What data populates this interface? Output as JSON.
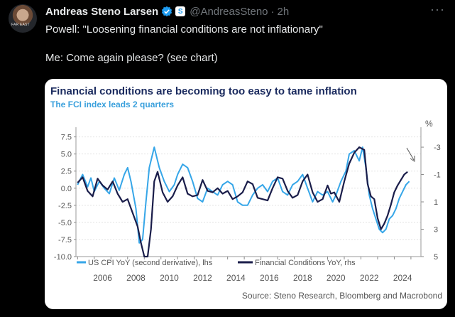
{
  "tweet": {
    "author_name": "Andreas Steno Larsen",
    "handle": "@AndreasSteno",
    "separator": "·",
    "time": "2h",
    "more_label": "···",
    "affiliate_badge": "S",
    "avatar_caption": "FAR EAST",
    "line1": "Powell: \"Loosening financial conditions are not inflationary\"",
    "line2": "Me: Come again please? (see chart)"
  },
  "colors": {
    "verified": "#1d9bf0",
    "cpi": "#36a6e8",
    "fci": "#1a1d4a",
    "title": "#1a2a5e",
    "subtitle": "#3aa0dc"
  },
  "chart_data": {
    "type": "line",
    "title": "Financial conditions are becoming too easy to tame inflation",
    "subtitle": "The FCI index leads 2 quarters",
    "source": "Source: Steno Research, Bloomberg and Macrobond",
    "right_axis_unit": "%",
    "left_axis": {
      "ticks": [
        7.5,
        5.0,
        2.5,
        0.0,
        -2.5,
        -5.0,
        -7.5,
        -10.0
      ],
      "range": [
        -10,
        8.5
      ]
    },
    "right_axis": {
      "inverted": true,
      "ticks": [
        -3,
        -1,
        1,
        3,
        5
      ],
      "range": [
        -4.25,
        5
      ]
    },
    "x_axis": {
      "ticks": [
        "2006",
        "2008",
        "2010",
        "2012",
        "2014",
        "2016",
        "2018",
        "2020",
        "2022",
        "2024"
      ],
      "range": [
        2004.9,
        2025.6
      ]
    },
    "legend": [
      "US CPI YoY (second derivative), lhs",
      "Financial Conditions YoY, rhs"
    ],
    "series": [
      {
        "name": "US CPI YoY (second derivative), lhs",
        "axis": "left",
        "x": [
          2005.0,
          2005.3,
          2005.6,
          2005.8,
          2006.0,
          2006.3,
          2006.6,
          2006.9,
          2007.2,
          2007.5,
          2007.8,
          2008.0,
          2008.2,
          2008.5,
          2008.7,
          2008.9,
          2009.1,
          2009.3,
          2009.6,
          2009.9,
          2010.2,
          2010.5,
          2010.8,
          2011.0,
          2011.3,
          2011.6,
          2011.9,
          2012.2,
          2012.5,
          2012.8,
          2013.1,
          2013.4,
          2013.7,
          2014.0,
          2014.3,
          2014.6,
          2014.9,
          2015.2,
          2015.5,
          2015.8,
          2016.1,
          2016.4,
          2016.7,
          2017.0,
          2017.3,
          2017.6,
          2017.9,
          2018.2,
          2018.5,
          2018.8,
          2019.1,
          2019.4,
          2019.7,
          2020.0,
          2020.3,
          2020.5,
          2020.8,
          2021.1,
          2021.3,
          2021.6,
          2021.9,
          2022.1,
          2022.3,
          2022.5,
          2022.7,
          2022.9,
          2023.1,
          2023.3,
          2023.5,
          2023.7,
          2023.9,
          2024.1,
          2024.3,
          2024.5,
          2024.7,
          2024.9
        ],
        "values": [
          0.5,
          2.0,
          0.2,
          1.5,
          -0.5,
          1.0,
          0.0,
          -0.8,
          1.5,
          -0.3,
          2.0,
          3.0,
          1.0,
          -3.0,
          -8.0,
          -7.5,
          -2.0,
          3.0,
          6.0,
          3.0,
          1.0,
          -0.5,
          0.5,
          2.0,
          3.5,
          3.0,
          1.0,
          -1.5,
          -2.0,
          0.0,
          -0.5,
          -1.0,
          0.5,
          1.0,
          0.5,
          -2.0,
          -2.5,
          -2.5,
          -1.0,
          0.0,
          0.5,
          -0.5,
          1.0,
          1.5,
          -0.5,
          -1.0,
          0.5,
          1.0,
          2.0,
          0.0,
          -2.0,
          -0.5,
          -1.0,
          -0.5,
          -2.0,
          -1.0,
          1.0,
          2.5,
          5.0,
          5.5,
          4.0,
          6.0,
          3.0,
          -1.0,
          -3.0,
          -4.5,
          -6.0,
          -6.5,
          -6.0,
          -4.5,
          -4.0,
          -3.0,
          -1.5,
          -0.5,
          0.5,
          1.0
        ]
      },
      {
        "name": "Financial Conditions YoY, rhs",
        "axis": "right",
        "x": [
          2005.0,
          2005.3,
          2005.6,
          2005.9,
          2006.2,
          2006.5,
          2006.8,
          2007.1,
          2007.4,
          2007.7,
          2008.0,
          2008.3,
          2008.6,
          2008.8,
          2009.0,
          2009.2,
          2009.4,
          2009.6,
          2009.8,
          2010.1,
          2010.4,
          2010.7,
          2011.0,
          2011.3,
          2011.6,
          2011.9,
          2012.2,
          2012.5,
          2012.8,
          2013.1,
          2013.4,
          2013.7,
          2014.0,
          2014.3,
          2014.6,
          2014.9,
          2015.2,
          2015.5,
          2015.8,
          2016.1,
          2016.4,
          2016.7,
          2017.0,
          2017.3,
          2017.6,
          2017.9,
          2018.2,
          2018.5,
          2018.8,
          2019.1,
          2019.4,
          2019.7,
          2020.0,
          2020.2,
          2020.4,
          2020.7,
          2021.0,
          2021.3,
          2021.6,
          2021.9,
          2022.2,
          2022.4,
          2022.6,
          2022.8,
          2023.0,
          2023.2,
          2023.4,
          2023.6,
          2023.8,
          2024.0,
          2024.2,
          2024.4,
          2024.6,
          2024.8
        ],
        "values": [
          -0.4,
          -0.8,
          0.2,
          0.6,
          -0.7,
          -0.2,
          0.1,
          -0.5,
          0.4,
          1.0,
          0.8,
          1.8,
          2.8,
          4.0,
          5.0,
          5.0,
          3.0,
          -0.5,
          -1.2,
          0.3,
          1.0,
          0.6,
          -0.2,
          -0.8,
          0.4,
          0.6,
          0.5,
          -0.6,
          0.2,
          0.3,
          0.0,
          0.4,
          0.2,
          0.8,
          0.6,
          0.3,
          -0.5,
          -0.3,
          0.7,
          0.8,
          0.9,
          0.0,
          -0.8,
          -0.7,
          0.2,
          0.7,
          0.5,
          -0.5,
          -1.0,
          0.3,
          1.0,
          0.8,
          -0.2,
          0.4,
          0.3,
          1.0,
          -0.5,
          -1.8,
          -2.6,
          -3.0,
          -2.8,
          -0.3,
          0.6,
          0.8,
          2.2,
          3.0,
          2.6,
          2.0,
          1.2,
          0.3,
          -0.2,
          -0.6,
          -1.0,
          -1.2
        ]
      }
    ]
  }
}
